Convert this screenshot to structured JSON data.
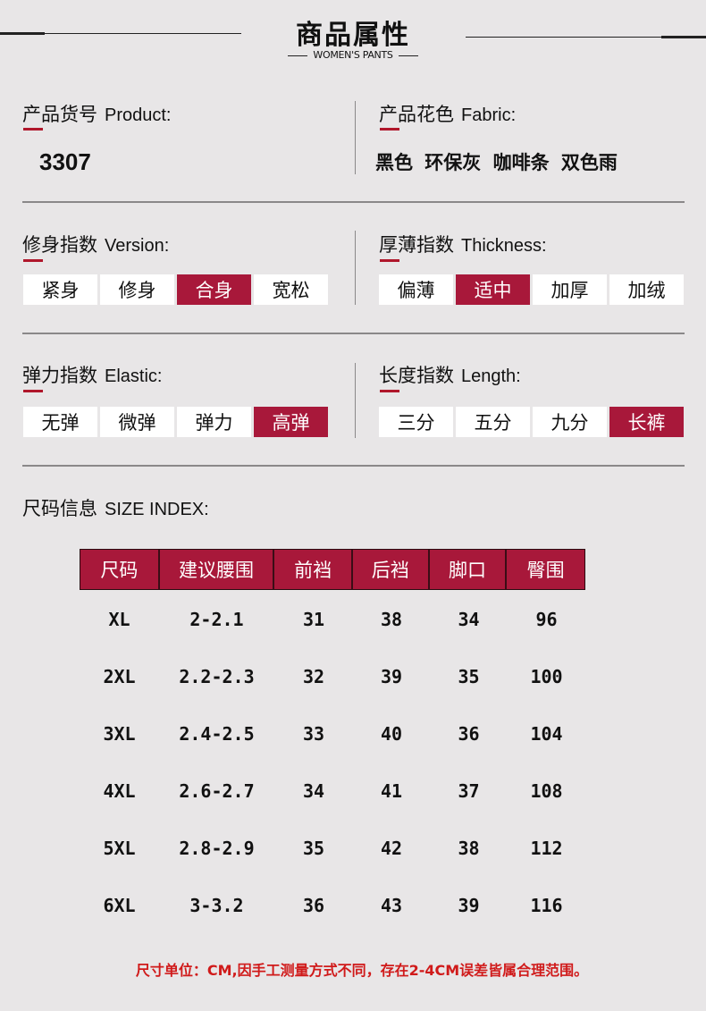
{
  "header": {
    "title": "商品属性",
    "subtitle": "WOMEN'S PANTS"
  },
  "product": {
    "label_cn": "产品货号",
    "label_en": "Product:",
    "value": "3307"
  },
  "fabric": {
    "label_cn": "产品花色",
    "label_en": "Fabric:",
    "value": "黑色  环保灰  咖啡条  双色雨"
  },
  "version": {
    "label_cn": "修身指数",
    "label_en": "Version:",
    "options": [
      "紧身",
      "修身",
      "合身",
      "宽松"
    ],
    "selected": 2
  },
  "thickness": {
    "label_cn": "厚薄指数",
    "label_en": "Thickness:",
    "options": [
      "偏薄",
      "适中",
      "加厚",
      "加绒"
    ],
    "selected": 1
  },
  "elastic": {
    "label_cn": "弹力指数",
    "label_en": "Elastic:",
    "options": [
      "无弹",
      "微弹",
      "弹力",
      "高弹"
    ],
    "selected": 3
  },
  "length": {
    "label_cn": "长度指数",
    "label_en": "Length:",
    "options": [
      "三分",
      "五分",
      "九分",
      "长裤"
    ],
    "selected": 3
  },
  "size": {
    "label_cn": "尺码信息",
    "label_en": "SIZE INDEX:",
    "headers": [
      "尺码",
      "建议腰围",
      "前裆",
      "后裆",
      "脚口",
      "臀围"
    ],
    "rows": [
      [
        "XL",
        "2-2.1",
        "31",
        "38",
        "34",
        "96"
      ],
      [
        "2XL",
        "2.2-2.3",
        "32",
        "39",
        "35",
        "100"
      ],
      [
        "3XL",
        "2.4-2.5",
        "33",
        "40",
        "36",
        "104"
      ],
      [
        "4XL",
        "2.6-2.7",
        "34",
        "41",
        "37",
        "108"
      ],
      [
        "5XL",
        "2.8-2.9",
        "35",
        "42",
        "38",
        "112"
      ],
      [
        "6XL",
        "3-3.2",
        "36",
        "43",
        "39",
        "116"
      ]
    ],
    "note": "尺寸单位：CM,因手工测量方式不同，存在2-4CM误差皆属合理范围。"
  },
  "colors": {
    "accent": "#a8183a",
    "background": "#e8e6e7",
    "note": "#d01a1a"
  }
}
